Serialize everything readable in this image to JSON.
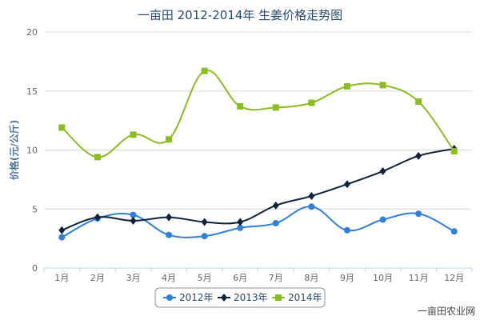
{
  "title": "一亩田 2012-2014年 生姜价格走势图",
  "watermark": "一亩田农业网",
  "chart_data": {
    "type": "line",
    "title": "一亩田 2012-2014年 生姜价格走势图",
    "xlabel": "",
    "ylabel": "价格(元/公斤)",
    "categories": [
      "1月",
      "2月",
      "3月",
      "4月",
      "5月",
      "6月",
      "7月",
      "8月",
      "9月",
      "10月",
      "11月",
      "12月"
    ],
    "ylim": [
      0,
      20
    ],
    "yticks": [
      0,
      5,
      10,
      15,
      20
    ],
    "grid": true,
    "legend_position": "bottom-center",
    "series": [
      {
        "name": "2012年",
        "color": "#2f7ed8",
        "marker": "circle",
        "values": [
          2.6,
          4.2,
          4.5,
          2.8,
          2.7,
          3.4,
          3.8,
          5.2,
          3.2,
          4.1,
          4.6,
          3.1
        ]
      },
      {
        "name": "2013年",
        "color": "#0d233a",
        "marker": "diamond",
        "values": [
          3.2,
          4.3,
          4.0,
          4.3,
          3.9,
          3.9,
          5.3,
          6.1,
          7.1,
          8.2,
          9.5,
          10.1
        ]
      },
      {
        "name": "2014年",
        "color": "#8bbc21",
        "marker": "square",
        "values": [
          11.9,
          9.4,
          11.3,
          10.9,
          16.7,
          13.7,
          13.6,
          14.0,
          15.4,
          15.5,
          14.1,
          9.9
        ]
      }
    ]
  }
}
